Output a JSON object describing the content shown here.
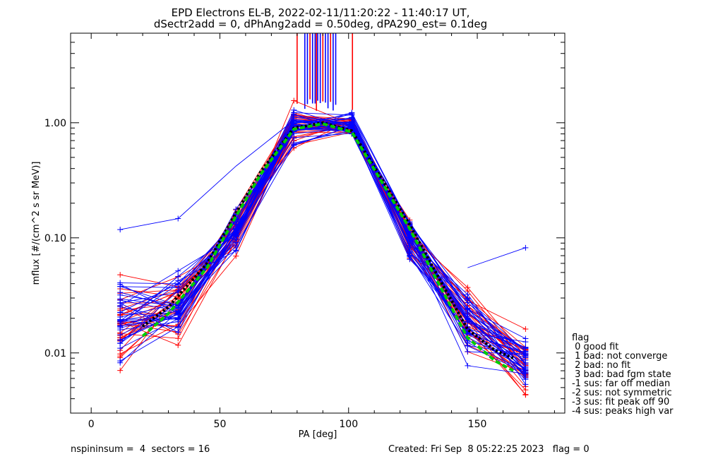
{
  "chart_data": {
    "type": "line",
    "title": "EPD Electrons EL-B, 2022-02-11/11:20:22 - 11:40:17 UT,",
    "subtitle": "dSectr2add = 0, dPhAng2add = 0.50deg, dPA290_est=   0.1deg",
    "xlabel": "PA [deg]",
    "ylabel": "mflux [#/(cm^2 s sr MeV)]",
    "xlim": [
      -8,
      184
    ],
    "ylim": [
      0.003,
      6.0
    ],
    "y_scale": "log",
    "x_ticks": [
      0,
      50,
      100,
      150
    ],
    "x_tick_labels": [
      "0",
      "50",
      "100",
      "150"
    ],
    "y_ticks": [
      0.01,
      0.1,
      1.0
    ],
    "y_tick_labels": [
      "0.01",
      "0.10",
      "1.00"
    ],
    "pa_bins": [
      11.25,
      33.75,
      56.25,
      78.75,
      101.25,
      123.75,
      146.25,
      168.75
    ],
    "colors": {
      "up": "#0000ff",
      "down": "#ff0000",
      "median": "#000000",
      "fit": "#00cc00"
    },
    "median_curve": {
      "x": [
        20,
        30,
        45,
        56,
        66,
        78.75,
        90,
        101.25,
        112,
        123.75,
        135,
        146.25,
        157,
        164
      ],
      "y": [
        0.017,
        0.025,
        0.06,
        0.16,
        0.38,
        0.9,
        1.0,
        0.85,
        0.35,
        0.13,
        0.045,
        0.016,
        0.0105,
        0.009
      ]
    },
    "fit_curve": {
      "x": [
        20,
        30,
        45,
        56,
        66,
        78.75,
        90,
        101.25,
        112,
        123.75,
        135,
        146.25,
        157,
        164
      ],
      "y": [
        0.014,
        0.022,
        0.055,
        0.15,
        0.36,
        0.88,
        0.98,
        0.83,
        0.33,
        0.12,
        0.04,
        0.0135,
        0.0085,
        0.007
      ]
    }
  },
  "legend": {
    "title": "flag",
    "items": [
      " 0 good fit",
      " 1 bad: not converge",
      " 2 bad: no fit",
      " 3 bad: bad fgm state",
      "-1 sus: far off median",
      "-2 sus: not symmetric",
      "-3 sus: fit peak off 90",
      "-4 sus: peaks high var"
    ]
  },
  "footer": {
    "left": "nspininsum =  4  sectors = 16",
    "right": "Created: Fri Sep  8 05:22:25 2023   flag = 0"
  }
}
